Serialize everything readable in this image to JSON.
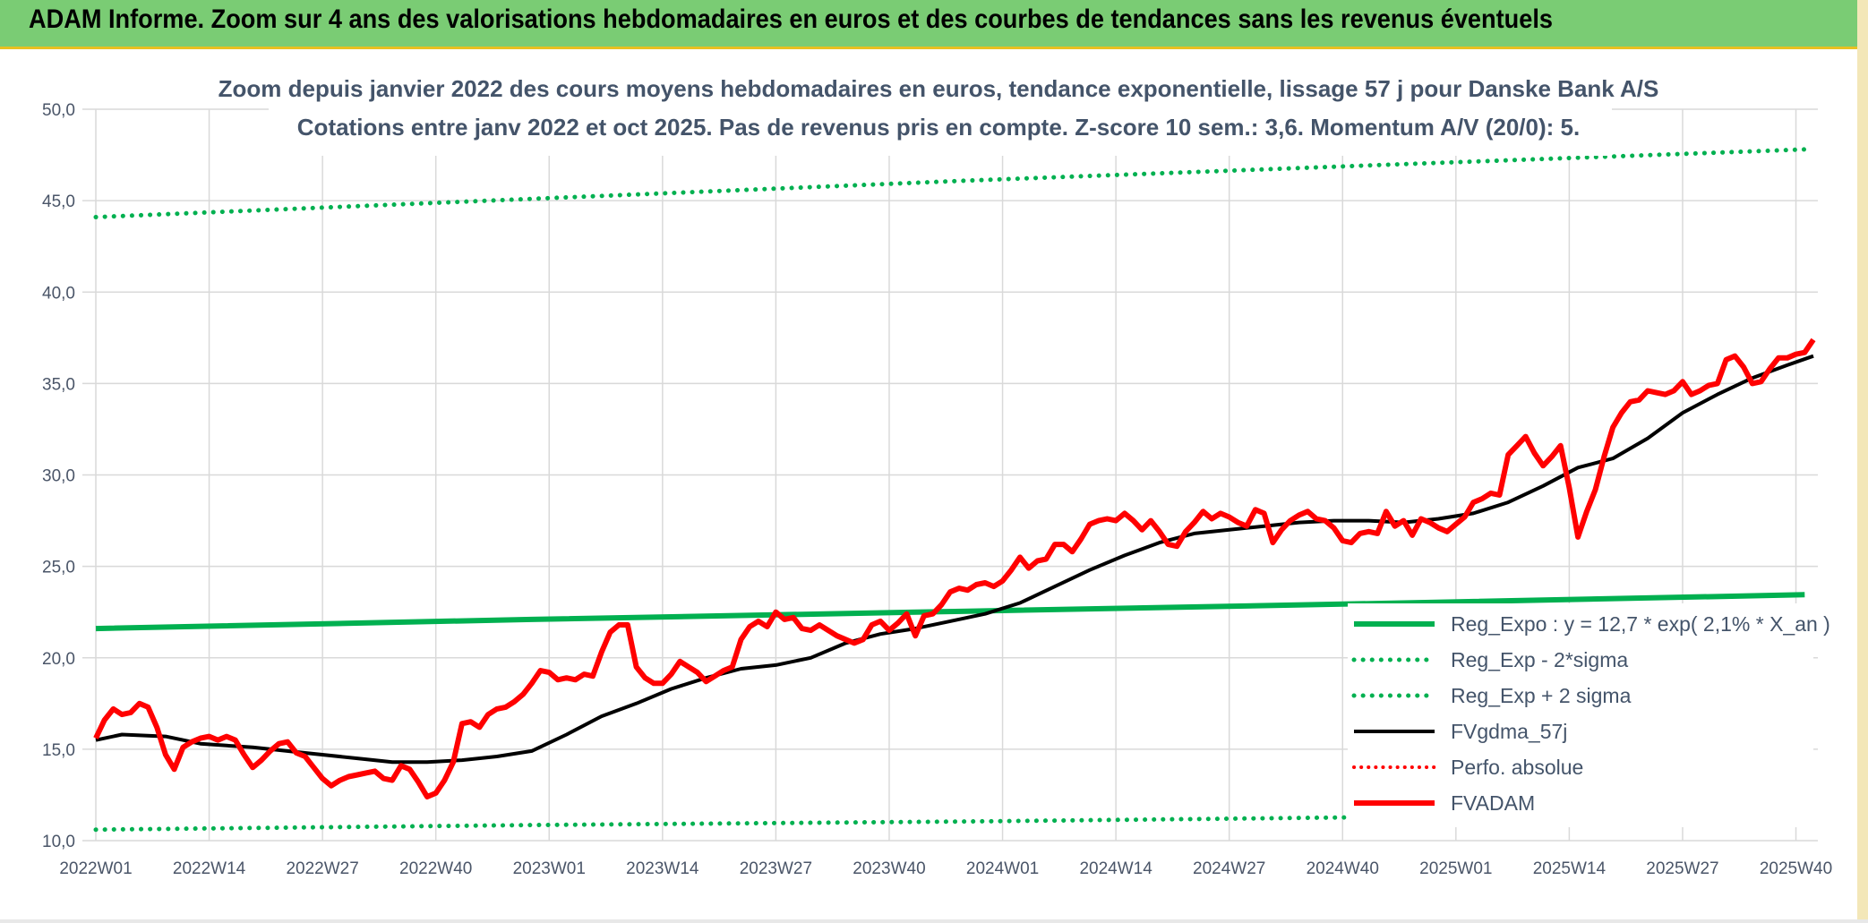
{
  "banner": {
    "title": "ADAM Informe. Zoom sur 4 ans des valorisations hebdomadaires en euros et des courbes de tendances sans les revenus éventuels"
  },
  "chart_data": {
    "type": "line",
    "title": "Zoom depuis janvier 2022 des cours moyens hebdomadaires en euros, tendance exponentielle, lissage 57 j pour Danske Bank A/S",
    "subtitle": "Cotations entre janv 2022 et oct 2025. Pas de revenus pris en compte. Z-score 10 sem.: 3,6. Momentum A/V (20/0): 5.",
    "xlabel": "",
    "ylabel": "",
    "ylim": [
      10,
      50
    ],
    "y_ticks": [
      "10,0",
      "15,0",
      "20,0",
      "25,0",
      "30,0",
      "35,0",
      "40,0",
      "45,0",
      "50,0"
    ],
    "x_ticks": [
      "2022W01",
      "2022W14",
      "2022W27",
      "2022W40",
      "2023W01",
      "2023W14",
      "2023W27",
      "2023W40",
      "2024W01",
      "2024W14",
      "2024W27",
      "2024W40",
      "2025W01",
      "2025W14",
      "2025W27",
      "2025W40"
    ],
    "grid": true,
    "legend_position": "bottom-right",
    "colors": {
      "green": "#00b050",
      "black": "#000000",
      "red": "#ff0000",
      "grid": "#d9d9d9"
    },
    "series": [
      {
        "name": "Reg_Expo : y = 12,7 * exp( 2,1% *  X_an )",
        "style": "solid-green",
        "points": [
          [
            0,
            21.6
          ],
          [
            50,
            22.1
          ],
          [
            100,
            22.55
          ],
          [
            150,
            23.0
          ],
          [
            196,
            23.45
          ]
        ]
      },
      {
        "name": "Reg_Exp - 2*sigma",
        "style": "dotted-green",
        "points": [
          [
            0,
            10.6
          ],
          [
            50,
            10.85
          ],
          [
            100,
            11.05
          ],
          [
            150,
            11.3
          ],
          [
            196,
            11.5
          ]
        ]
      },
      {
        "name": "Reg_Exp + 2 sigma",
        "style": "dotted-green",
        "points": [
          [
            0,
            44.1
          ],
          [
            50,
            45.1
          ],
          [
            100,
            46.1
          ],
          [
            150,
            47.0
          ],
          [
            196,
            47.8
          ]
        ]
      },
      {
        "name": "FVgdma_57j",
        "style": "solid-black",
        "points": [
          [
            0,
            15.5
          ],
          [
            3,
            15.8
          ],
          [
            8,
            15.7
          ],
          [
            12,
            15.3
          ],
          [
            18,
            15.1
          ],
          [
            24,
            14.8
          ],
          [
            30,
            14.5
          ],
          [
            34,
            14.3
          ],
          [
            38,
            14.3
          ],
          [
            42,
            14.4
          ],
          [
            46,
            14.6
          ],
          [
            50,
            14.9
          ],
          [
            54,
            15.8
          ],
          [
            58,
            16.8
          ],
          [
            62,
            17.5
          ],
          [
            66,
            18.3
          ],
          [
            70,
            18.9
          ],
          [
            74,
            19.4
          ],
          [
            78,
            19.6
          ],
          [
            82,
            20.0
          ],
          [
            86,
            20.8
          ],
          [
            90,
            21.3
          ],
          [
            94,
            21.6
          ],
          [
            98,
            22.0
          ],
          [
            102,
            22.4
          ],
          [
            106,
            23.0
          ],
          [
            110,
            23.9
          ],
          [
            114,
            24.8
          ],
          [
            118,
            25.6
          ],
          [
            122,
            26.3
          ],
          [
            126,
            26.8
          ],
          [
            130,
            27.0
          ],
          [
            134,
            27.2
          ],
          [
            138,
            27.4
          ],
          [
            142,
            27.5
          ],
          [
            146,
            27.5
          ],
          [
            150,
            27.4
          ],
          [
            154,
            27.6
          ],
          [
            158,
            27.9
          ],
          [
            162,
            28.5
          ],
          [
            166,
            29.4
          ],
          [
            170,
            30.4
          ],
          [
            174,
            30.9
          ],
          [
            178,
            32.0
          ],
          [
            182,
            33.4
          ],
          [
            186,
            34.4
          ],
          [
            190,
            35.3
          ],
          [
            194,
            36.0
          ],
          [
            197,
            36.5
          ]
        ]
      },
      {
        "name": "Perfo. absolue",
        "style": "dotted-red",
        "points": []
      },
      {
        "name": "FVADAM",
        "style": "solid-red",
        "points": [
          [
            0,
            15.6
          ],
          [
            1,
            16.6
          ],
          [
            2,
            17.2
          ],
          [
            3,
            16.9
          ],
          [
            4,
            17.0
          ],
          [
            5,
            17.5
          ],
          [
            6,
            17.3
          ],
          [
            7,
            16.2
          ],
          [
            8,
            14.7
          ],
          [
            9,
            13.9
          ],
          [
            10,
            15.1
          ],
          [
            11,
            15.4
          ],
          [
            12,
            15.6
          ],
          [
            13,
            15.7
          ],
          [
            14,
            15.5
          ],
          [
            15,
            15.7
          ],
          [
            16,
            15.5
          ],
          [
            17,
            14.7
          ],
          [
            18,
            14.0
          ],
          [
            19,
            14.4
          ],
          [
            20,
            14.9
          ],
          [
            21,
            15.3
          ],
          [
            22,
            15.4
          ],
          [
            23,
            14.8
          ],
          [
            24,
            14.6
          ],
          [
            25,
            14.0
          ],
          [
            26,
            13.4
          ],
          [
            27,
            13.0
          ],
          [
            28,
            13.3
          ],
          [
            29,
            13.5
          ],
          [
            30,
            13.6
          ],
          [
            31,
            13.7
          ],
          [
            32,
            13.8
          ],
          [
            33,
            13.4
          ],
          [
            34,
            13.3
          ],
          [
            35,
            14.1
          ],
          [
            36,
            13.9
          ],
          [
            37,
            13.2
          ],
          [
            38,
            12.4
          ],
          [
            39,
            12.6
          ],
          [
            40,
            13.3
          ],
          [
            41,
            14.3
          ],
          [
            42,
            16.4
          ],
          [
            43,
            16.5
          ],
          [
            44,
            16.2
          ],
          [
            45,
            16.9
          ],
          [
            46,
            17.2
          ],
          [
            47,
            17.3
          ],
          [
            48,
            17.6
          ],
          [
            49,
            18.0
          ],
          [
            50,
            18.6
          ],
          [
            51,
            19.3
          ],
          [
            52,
            19.2
          ],
          [
            53,
            18.8
          ],
          [
            54,
            18.9
          ],
          [
            55,
            18.8
          ],
          [
            56,
            19.1
          ],
          [
            57,
            19.0
          ],
          [
            58,
            20.3
          ],
          [
            59,
            21.4
          ],
          [
            60,
            21.8
          ],
          [
            61,
            21.8
          ],
          [
            62,
            19.5
          ],
          [
            63,
            18.9
          ],
          [
            64,
            18.6
          ],
          [
            65,
            18.6
          ],
          [
            66,
            19.1
          ],
          [
            67,
            19.8
          ],
          [
            68,
            19.5
          ],
          [
            69,
            19.2
          ],
          [
            70,
            18.7
          ],
          [
            71,
            19.0
          ],
          [
            72,
            19.3
          ],
          [
            73,
            19.5
          ],
          [
            74,
            21.0
          ],
          [
            75,
            21.7
          ],
          [
            76,
            22.0
          ],
          [
            77,
            21.7
          ],
          [
            78,
            22.5
          ],
          [
            79,
            22.1
          ],
          [
            80,
            22.2
          ],
          [
            81,
            21.6
          ],
          [
            82,
            21.5
          ],
          [
            83,
            21.8
          ],
          [
            84,
            21.5
          ],
          [
            85,
            21.2
          ],
          [
            86,
            21.0
          ],
          [
            87,
            20.8
          ],
          [
            88,
            21.0
          ],
          [
            89,
            21.8
          ],
          [
            90,
            22.0
          ],
          [
            91,
            21.5
          ],
          [
            92,
            21.9
          ],
          [
            93,
            22.4
          ],
          [
            94,
            21.2
          ],
          [
            95,
            22.3
          ],
          [
            96,
            22.4
          ],
          [
            97,
            22.9
          ],
          [
            98,
            23.6
          ],
          [
            99,
            23.8
          ],
          [
            100,
            23.7
          ],
          [
            101,
            24.0
          ],
          [
            102,
            24.1
          ],
          [
            103,
            23.9
          ],
          [
            104,
            24.2
          ],
          [
            105,
            24.8
          ],
          [
            106,
            25.5
          ],
          [
            107,
            24.9
          ],
          [
            108,
            25.3
          ],
          [
            109,
            25.4
          ],
          [
            110,
            26.2
          ],
          [
            111,
            26.2
          ],
          [
            112,
            25.8
          ],
          [
            113,
            26.5
          ],
          [
            114,
            27.3
          ],
          [
            115,
            27.5
          ],
          [
            116,
            27.6
          ],
          [
            117,
            27.5
          ],
          [
            118,
            27.9
          ],
          [
            119,
            27.5
          ],
          [
            120,
            27.0
          ],
          [
            121,
            27.5
          ],
          [
            122,
            26.9
          ],
          [
            123,
            26.2
          ],
          [
            124,
            26.1
          ],
          [
            125,
            26.9
          ],
          [
            126,
            27.4
          ],
          [
            127,
            28.0
          ],
          [
            128,
            27.6
          ],
          [
            129,
            27.9
          ],
          [
            130,
            27.7
          ],
          [
            131,
            27.4
          ],
          [
            132,
            27.2
          ],
          [
            133,
            28.1
          ],
          [
            134,
            27.9
          ],
          [
            135,
            26.3
          ],
          [
            136,
            27.0
          ],
          [
            137,
            27.5
          ],
          [
            138,
            27.8
          ],
          [
            139,
            28.0
          ],
          [
            140,
            27.6
          ],
          [
            141,
            27.5
          ],
          [
            142,
            27.1
          ],
          [
            143,
            26.4
          ],
          [
            144,
            26.3
          ],
          [
            145,
            26.8
          ],
          [
            146,
            26.9
          ],
          [
            147,
            26.8
          ],
          [
            148,
            28.0
          ],
          [
            149,
            27.2
          ],
          [
            150,
            27.5
          ],
          [
            151,
            26.7
          ],
          [
            152,
            27.6
          ],
          [
            153,
            27.4
          ],
          [
            154,
            27.1
          ],
          [
            155,
            26.9
          ],
          [
            156,
            27.3
          ],
          [
            157,
            27.7
          ],
          [
            158,
            28.5
          ],
          [
            159,
            28.7
          ],
          [
            160,
            29.0
          ],
          [
            161,
            28.9
          ],
          [
            162,
            31.1
          ],
          [
            163,
            31.6
          ],
          [
            164,
            32.1
          ],
          [
            165,
            31.2
          ],
          [
            166,
            30.5
          ],
          [
            167,
            31.0
          ],
          [
            168,
            31.6
          ],
          [
            169,
            29.3
          ],
          [
            170,
            26.6
          ],
          [
            171,
            28.0
          ],
          [
            172,
            29.2
          ],
          [
            173,
            31.0
          ],
          [
            174,
            32.6
          ],
          [
            175,
            33.4
          ],
          [
            176,
            34.0
          ],
          [
            177,
            34.1
          ],
          [
            178,
            34.6
          ],
          [
            179,
            34.5
          ],
          [
            180,
            34.4
          ],
          [
            181,
            34.6
          ],
          [
            182,
            35.1
          ],
          [
            183,
            34.4
          ],
          [
            184,
            34.6
          ],
          [
            185,
            34.9
          ],
          [
            186,
            35.0
          ],
          [
            187,
            36.3
          ],
          [
            188,
            36.5
          ],
          [
            189,
            35.9
          ],
          [
            190,
            35.0
          ],
          [
            191,
            35.1
          ],
          [
            192,
            35.8
          ],
          [
            193,
            36.4
          ],
          [
            194,
            36.4
          ],
          [
            195,
            36.6
          ],
          [
            196,
            36.7
          ],
          [
            197,
            37.4
          ]
        ]
      }
    ]
  }
}
